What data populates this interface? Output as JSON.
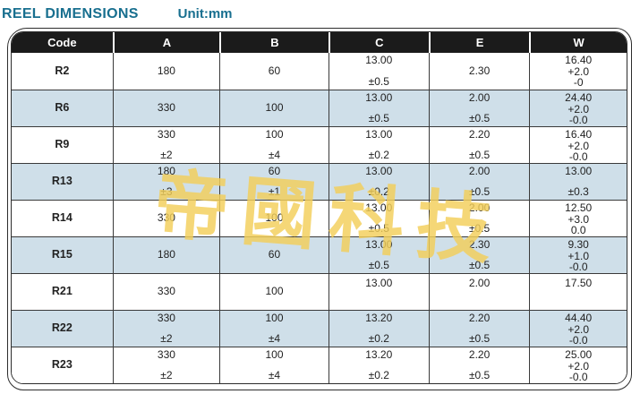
{
  "title": "REEL DIMENSIONS",
  "unit_label": "Unit:mm",
  "watermark": "帝國科技",
  "colors": {
    "title": "#186f8f",
    "header_bg": "#1b1b1b",
    "row_alt_bg": "#cfdfe9",
    "watermark": "#f3cf5a"
  },
  "table": {
    "columns": [
      "Code",
      "A",
      "B",
      "C",
      "E",
      "W"
    ],
    "rows": [
      {
        "code": "R2",
        "shaded": false,
        "cells": [
          {
            "lines": [
              "180"
            ],
            "valign": "center"
          },
          {
            "lines": [
              "60"
            ],
            "valign": "center"
          },
          {
            "lines": [
              "13.00",
              "±0.5"
            ],
            "valign": "between"
          },
          {
            "lines": [
              "2.30"
            ],
            "valign": "center"
          },
          {
            "lines": [
              "16.40",
              "+2.0",
              "-0"
            ],
            "valign": "between"
          }
        ]
      },
      {
        "code": "R6",
        "shaded": true,
        "cells": [
          {
            "lines": [
              "330"
            ],
            "valign": "center"
          },
          {
            "lines": [
              "100"
            ],
            "valign": "center"
          },
          {
            "lines": [
              "13.00",
              "±0.5"
            ],
            "valign": "between"
          },
          {
            "lines": [
              "2.00",
              "±0.5"
            ],
            "valign": "between"
          },
          {
            "lines": [
              "24.40",
              "+2.0",
              "-0.0"
            ],
            "valign": "between"
          }
        ]
      },
      {
        "code": "R9",
        "shaded": false,
        "cells": [
          {
            "lines": [
              "330",
              "±2"
            ],
            "valign": "between"
          },
          {
            "lines": [
              "100",
              "±4"
            ],
            "valign": "between"
          },
          {
            "lines": [
              "13.00",
              "±0.2"
            ],
            "valign": "between"
          },
          {
            "lines": [
              "2.20",
              "±0.5"
            ],
            "valign": "between"
          },
          {
            "lines": [
              "16.40",
              "+2.0",
              "-0.0"
            ],
            "valign": "between"
          }
        ]
      },
      {
        "code": "R13",
        "shaded": true,
        "cells": [
          {
            "lines": [
              "180",
              "±3"
            ],
            "valign": "between"
          },
          {
            "lines": [
              "60",
              "±1"
            ],
            "valign": "between"
          },
          {
            "lines": [
              "13.00",
              "±0.2"
            ],
            "valign": "between"
          },
          {
            "lines": [
              "2.00",
              "±0.5"
            ],
            "valign": "between"
          },
          {
            "lines": [
              "13.00",
              "±0.3"
            ],
            "valign": "between"
          }
        ]
      },
      {
        "code": "R14",
        "shaded": false,
        "cells": [
          {
            "lines": [
              "330"
            ],
            "valign": "center"
          },
          {
            "lines": [
              "100"
            ],
            "valign": "center"
          },
          {
            "lines": [
              "13.00",
              "±0.5"
            ],
            "valign": "between"
          },
          {
            "lines": [
              "2.00",
              "±0.5"
            ],
            "valign": "between"
          },
          {
            "lines": [
              "12.50",
              "+3.0",
              "0.0"
            ],
            "valign": "between"
          }
        ]
      },
      {
        "code": "R15",
        "shaded": true,
        "cells": [
          {
            "lines": [
              "180"
            ],
            "valign": "center"
          },
          {
            "lines": [
              "60"
            ],
            "valign": "center"
          },
          {
            "lines": [
              "13.00",
              "±0.5"
            ],
            "valign": "between"
          },
          {
            "lines": [
              "2.30",
              "±0.5"
            ],
            "valign": "between"
          },
          {
            "lines": [
              "9.30",
              "+1.0",
              "-0.0"
            ],
            "valign": "between"
          }
        ]
      },
      {
        "code": "R21",
        "shaded": false,
        "cells": [
          {
            "lines": [
              "330"
            ],
            "valign": "center"
          },
          {
            "lines": [
              "100"
            ],
            "valign": "center"
          },
          {
            "lines": [
              "13.00"
            ],
            "valign": "top"
          },
          {
            "lines": [
              "2.00"
            ],
            "valign": "top"
          },
          {
            "lines": [
              "17.50"
            ],
            "valign": "top"
          }
        ]
      },
      {
        "code": "R22",
        "shaded": true,
        "cells": [
          {
            "lines": [
              "330",
              "±2"
            ],
            "valign": "between"
          },
          {
            "lines": [
              "100",
              "±4"
            ],
            "valign": "between"
          },
          {
            "lines": [
              "13.20",
              "±0.2"
            ],
            "valign": "between"
          },
          {
            "lines": [
              "2.20",
              "±0.5"
            ],
            "valign": "between"
          },
          {
            "lines": [
              "44.40",
              "+2.0",
              "-0.0"
            ],
            "valign": "between"
          }
        ]
      },
      {
        "code": "R23",
        "shaded": false,
        "cells": [
          {
            "lines": [
              "330",
              "±2"
            ],
            "valign": "between"
          },
          {
            "lines": [
              "100",
              "±4"
            ],
            "valign": "between"
          },
          {
            "lines": [
              "13.20",
              "±0.2"
            ],
            "valign": "between"
          },
          {
            "lines": [
              "2.20",
              "±0.5"
            ],
            "valign": "between"
          },
          {
            "lines": [
              "25.00",
              "+2.0",
              "-0.0"
            ],
            "valign": "between"
          }
        ]
      }
    ]
  }
}
